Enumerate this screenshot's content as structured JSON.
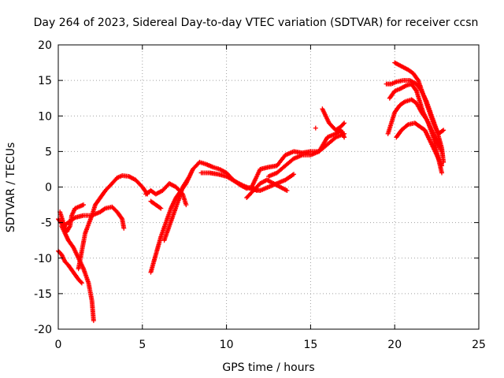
{
  "chart_data": {
    "type": "scatter",
    "title": "Day 264 of 2023, Sidereal Day-to-day VTEC variation (SDTVAR) for receiver ccsn",
    "xlabel": "GPS time / hours",
    "ylabel": "SDTVAR / TECUs",
    "xlim": [
      0,
      25
    ],
    "ylim": [
      -20,
      20
    ],
    "xticks": [
      0,
      5,
      10,
      15,
      20,
      25
    ],
    "yticks": [
      -20,
      -15,
      -10,
      -5,
      0,
      5,
      10,
      15,
      20
    ],
    "grid": true,
    "marker": "plus",
    "color": "#ff0000",
    "tracks": [
      [
        [
          0.0,
          -4.5
        ],
        [
          0.3,
          -5.5
        ],
        [
          0.7,
          -4.8
        ],
        [
          1.0,
          -4.3
        ],
        [
          1.5,
          -4.0
        ],
        [
          2.0,
          -4.0
        ],
        [
          2.5,
          -3.5
        ],
        [
          2.8,
          -3.0
        ],
        [
          3.2,
          -2.8
        ],
        [
          3.5,
          -3.5
        ],
        [
          3.8,
          -4.5
        ],
        [
          3.9,
          -5.8
        ]
      ],
      [
        [
          0.0,
          -9.0
        ],
        [
          0.2,
          -9.5
        ],
        [
          0.4,
          -10.5
        ],
        [
          0.6,
          -11.0
        ],
        [
          0.9,
          -12.0
        ],
        [
          1.2,
          -13.0
        ],
        [
          1.4,
          -13.5
        ]
      ],
      [
        [
          0.2,
          -5.5
        ],
        [
          0.4,
          -6.5
        ],
        [
          0.6,
          -7.5
        ],
        [
          0.9,
          -8.5
        ],
        [
          1.2,
          -10.0
        ],
        [
          1.5,
          -11.5
        ],
        [
          1.8,
          -13.5
        ],
        [
          2.0,
          -16.0
        ],
        [
          2.1,
          -18.8
        ]
      ],
      [
        [
          0.1,
          -3.5
        ],
        [
          0.3,
          -5.0
        ],
        [
          0.5,
          -6.3
        ],
        [
          0.7,
          -5.5
        ],
        [
          0.8,
          -4.0
        ],
        [
          1.0,
          -3.0
        ],
        [
          1.3,
          -2.7
        ],
        [
          1.5,
          -2.5
        ]
      ],
      [
        [
          1.2,
          -11.5
        ],
        [
          1.4,
          -9.0
        ],
        [
          1.6,
          -6.5
        ],
        [
          2.0,
          -4.0
        ],
        [
          2.2,
          -2.5
        ],
        [
          2.5,
          -1.5
        ],
        [
          2.8,
          -0.5
        ],
        [
          3.2,
          0.5
        ],
        [
          3.5,
          1.3
        ],
        [
          3.8,
          1.6
        ],
        [
          4.2,
          1.5
        ],
        [
          4.6,
          1.0
        ],
        [
          5.0,
          0.0
        ],
        [
          5.3,
          -1.0
        ]
      ],
      [
        [
          5.5,
          -2.0
        ],
        [
          5.8,
          -2.5
        ],
        [
          6.1,
          -3.0
        ]
      ],
      [
        [
          5.5,
          -12.0
        ],
        [
          5.8,
          -9.5
        ],
        [
          6.1,
          -7.0
        ],
        [
          6.4,
          -5.0
        ],
        [
          6.7,
          -3.0
        ],
        [
          7.0,
          -1.5
        ],
        [
          7.3,
          -0.5
        ],
        [
          7.6,
          0.5
        ],
        [
          8.0,
          2.5
        ],
        [
          8.4,
          3.5
        ],
        [
          8.8,
          3.2
        ],
        [
          9.2,
          2.8
        ],
        [
          9.6,
          2.5
        ],
        [
          10.0,
          2.0
        ],
        [
          10.4,
          1.0
        ],
        [
          10.8,
          0.3
        ],
        [
          11.2,
          -0.2
        ],
        [
          11.5,
          0.0
        ],
        [
          11.8,
          -0.5
        ]
      ],
      [
        [
          6.3,
          -7.5
        ],
        [
          6.6,
          -5.5
        ],
        [
          6.9,
          -3.5
        ],
        [
          7.2,
          -1.5
        ],
        [
          7.4,
          0.0
        ],
        [
          7.8,
          1.5
        ]
      ],
      [
        [
          5.2,
          -1.0
        ],
        [
          5.5,
          -0.5
        ],
        [
          5.8,
          -1.0
        ],
        [
          6.2,
          -0.5
        ],
        [
          6.6,
          0.5
        ],
        [
          7.0,
          0.0
        ],
        [
          7.4,
          -1.0
        ],
        [
          7.6,
          -2.5
        ]
      ],
      [
        [
          8.5,
          2.0
        ],
        [
          9.0,
          2.0
        ],
        [
          9.5,
          1.8
        ],
        [
          10.0,
          1.5
        ],
        [
          10.5,
          0.8
        ],
        [
          11.0,
          0.2
        ],
        [
          11.5,
          -0.3
        ],
        [
          12.0,
          -0.5
        ],
        [
          12.5,
          0.0
        ],
        [
          13.0,
          0.5
        ],
        [
          13.5,
          1.0
        ],
        [
          14.0,
          1.8
        ]
      ],
      [
        [
          11.2,
          -1.5
        ],
        [
          11.6,
          -0.5
        ],
        [
          12.0,
          0.5
        ],
        [
          12.4,
          1.0
        ],
        [
          12.8,
          0.5
        ],
        [
          13.2,
          0.0
        ],
        [
          13.6,
          -0.5
        ]
      ],
      [
        [
          11.5,
          0.0
        ],
        [
          12.0,
          2.5
        ],
        [
          12.5,
          2.8
        ],
        [
          13.0,
          3.0
        ],
        [
          13.5,
          4.5
        ],
        [
          14.0,
          5.0
        ],
        [
          14.5,
          4.8
        ],
        [
          15.0,
          5.0
        ],
        [
          15.5,
          5.0
        ],
        [
          16.0,
          6.0
        ],
        [
          16.5,
          7.0
        ],
        [
          17.0,
          7.5
        ]
      ],
      [
        [
          12.5,
          1.5
        ],
        [
          13.0,
          2.0
        ],
        [
          13.5,
          3.0
        ],
        [
          14.0,
          4.0
        ],
        [
          14.5,
          4.5
        ],
        [
          15.0,
          4.5
        ],
        [
          15.5,
          5.0
        ],
        [
          16.0,
          7.0
        ],
        [
          16.5,
          7.5
        ],
        [
          16.8,
          8.0
        ],
        [
          17.0,
          7.0
        ]
      ],
      [
        [
          15.7,
          11.0
        ],
        [
          15.9,
          10.0
        ],
        [
          16.1,
          9.0
        ],
        [
          16.3,
          8.5
        ],
        [
          16.5,
          8.0
        ],
        [
          16.8,
          8.5
        ],
        [
          17.0,
          9.0
        ]
      ],
      [
        [
          19.5,
          14.5
        ],
        [
          19.8,
          14.5
        ],
        [
          20.1,
          14.8
        ],
        [
          20.5,
          15.0
        ],
        [
          20.9,
          15.0
        ],
        [
          21.3,
          14.5
        ],
        [
          21.6,
          13.5
        ],
        [
          21.9,
          12.0
        ],
        [
          22.2,
          10.0
        ],
        [
          22.5,
          8.0
        ],
        [
          22.8,
          5.5
        ],
        [
          22.9,
          3.5
        ]
      ],
      [
        [
          20.0,
          17.5
        ],
        [
          20.4,
          17.0
        ],
        [
          20.8,
          16.5
        ],
        [
          21.1,
          16.0
        ],
        [
          21.4,
          15.0
        ],
        [
          21.7,
          13.0
        ],
        [
          22.0,
          11.0
        ],
        [
          22.3,
          9.0
        ],
        [
          22.6,
          7.5
        ],
        [
          22.9,
          8.0
        ]
      ],
      [
        [
          19.7,
          12.5
        ],
        [
          20.0,
          13.5
        ],
        [
          20.3,
          13.8
        ],
        [
          20.7,
          14.3
        ],
        [
          21.0,
          14.5
        ],
        [
          21.3,
          13.5
        ],
        [
          21.5,
          12.0
        ],
        [
          21.7,
          10.5
        ],
        [
          22.0,
          9.0
        ],
        [
          22.3,
          7.0
        ],
        [
          22.5,
          5.0
        ],
        [
          22.8,
          2.0
        ]
      ],
      [
        [
          19.6,
          7.5
        ],
        [
          19.8,
          9.0
        ],
        [
          20.0,
          10.5
        ],
        [
          20.3,
          11.5
        ],
        [
          20.6,
          12.0
        ],
        [
          21.0,
          12.3
        ],
        [
          21.3,
          11.8
        ],
        [
          21.6,
          10.5
        ],
        [
          21.9,
          9.5
        ],
        [
          22.2,
          8.0
        ],
        [
          22.5,
          6.5
        ],
        [
          22.8,
          5.0
        ]
      ],
      [
        [
          20.1,
          7.0
        ],
        [
          20.4,
          8.0
        ],
        [
          20.8,
          8.8
        ],
        [
          21.2,
          9.0
        ],
        [
          21.5,
          8.5
        ],
        [
          21.8,
          8.0
        ],
        [
          22.0,
          7.0
        ],
        [
          22.3,
          5.5
        ],
        [
          22.6,
          4.0
        ],
        [
          22.8,
          3.0
        ]
      ],
      [
        [
          15.3,
          8.3
        ]
      ]
    ]
  }
}
